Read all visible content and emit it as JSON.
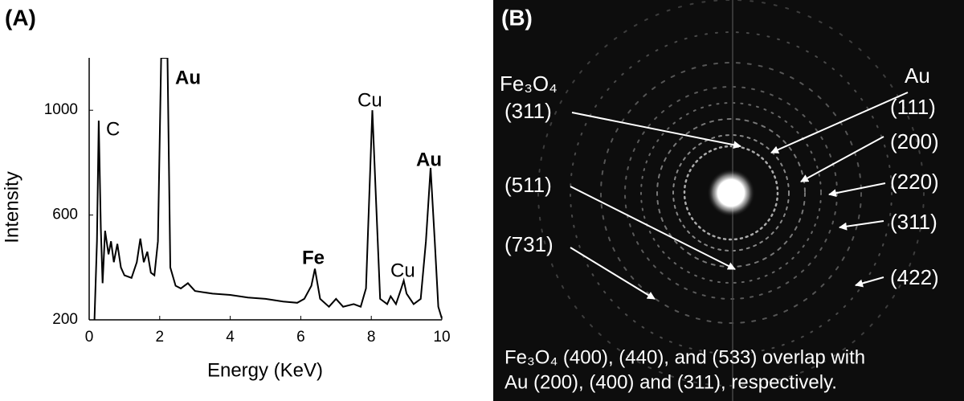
{
  "chart_data": {
    "type": "line",
    "panel_label": "(A)",
    "xlabel": "Energy (KeV)",
    "ylabel": "Intensity",
    "x": [
      0.15,
      0.22,
      0.27,
      0.33,
      0.38,
      0.45,
      0.55,
      0.62,
      0.7,
      0.8,
      0.9,
      1.0,
      1.2,
      1.35,
      1.45,
      1.55,
      1.65,
      1.75,
      1.85,
      1.95,
      2.04,
      2.22,
      2.3,
      2.45,
      2.6,
      2.8,
      3.0,
      3.5,
      4.0,
      4.5,
      5.0,
      5.5,
      5.9,
      6.1,
      6.3,
      6.4,
      6.55,
      6.8,
      7.0,
      7.2,
      7.5,
      7.7,
      7.85,
      7.95,
      8.03,
      8.12,
      8.25,
      8.45,
      8.55,
      8.7,
      8.85,
      8.92,
      9.0,
      9.2,
      9.4,
      9.55,
      9.68,
      9.8,
      9.9,
      10.0
    ],
    "values": [
      200,
      500,
      960,
      550,
      340,
      540,
      450,
      500,
      420,
      490,
      400,
      370,
      360,
      420,
      510,
      420,
      460,
      380,
      370,
      500,
      1200,
      1200,
      400,
      330,
      320,
      340,
      310,
      300,
      295,
      285,
      280,
      270,
      265,
      280,
      330,
      395,
      280,
      250,
      280,
      250,
      260,
      250,
      320,
      700,
      1000,
      700,
      280,
      260,
      290,
      260,
      320,
      350,
      300,
      260,
      280,
      500,
      780,
      500,
      250,
      205
    ],
    "color": "#000000",
    "xlim": [
      0,
      10
    ],
    "xticks": [
      0,
      2,
      4,
      6,
      8,
      10
    ],
    "ylim": [
      200,
      1200
    ],
    "yticks": [
      200,
      600,
      1000
    ],
    "annotations": [
      "C",
      "Au",
      "Cu",
      "Au",
      "Fe",
      "Cu"
    ]
  },
  "panel_b": {
    "panel_label": "(B)",
    "left_labels": [
      "Fe₃O₄",
      "(311)",
      "(511)",
      "(731)"
    ],
    "right_labels": [
      "Au",
      "(111)",
      "(200)",
      "(220)",
      "(311)",
      "(422)"
    ],
    "caption": [
      "Fe₃O₄ (400), (440), and (533) overlap with",
      "Au (200), (400) and (311),  respectively."
    ]
  }
}
